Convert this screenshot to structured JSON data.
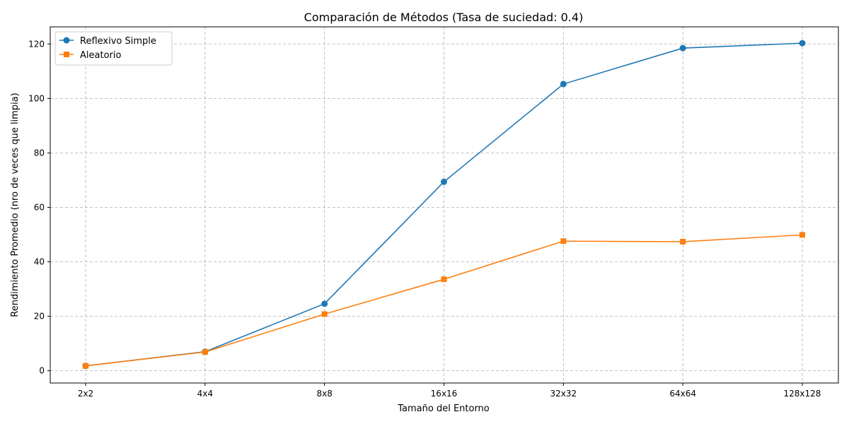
{
  "chart_data": {
    "type": "line",
    "title": "Comparación de Métodos (Tasa de suciedad: 0.4)",
    "xlabel": "Tamaño del Entorno",
    "ylabel": "Rendimiento Promedio (nro de veces que limpia)",
    "categories": [
      "2x2",
      "4x4",
      "8x8",
      "16x16",
      "32x32",
      "64x64",
      "128x128"
    ],
    "ylim": [
      -4.5,
      126.3
    ],
    "yticks": [
      0,
      20,
      40,
      60,
      80,
      100,
      120
    ],
    "grid": true,
    "legend_position": "top-left",
    "series": [
      {
        "name": "Reflexivo Simple",
        "color": "#1f77b4",
        "marker": "circle",
        "values": [
          1.8,
          7.0,
          24.6,
          69.4,
          105.3,
          118.5,
          120.3
        ]
      },
      {
        "name": "Aleatorio",
        "color": "#ff7f0e",
        "marker": "square",
        "values": [
          1.8,
          6.9,
          20.8,
          33.6,
          47.6,
          47.4,
          49.9
        ]
      }
    ]
  }
}
